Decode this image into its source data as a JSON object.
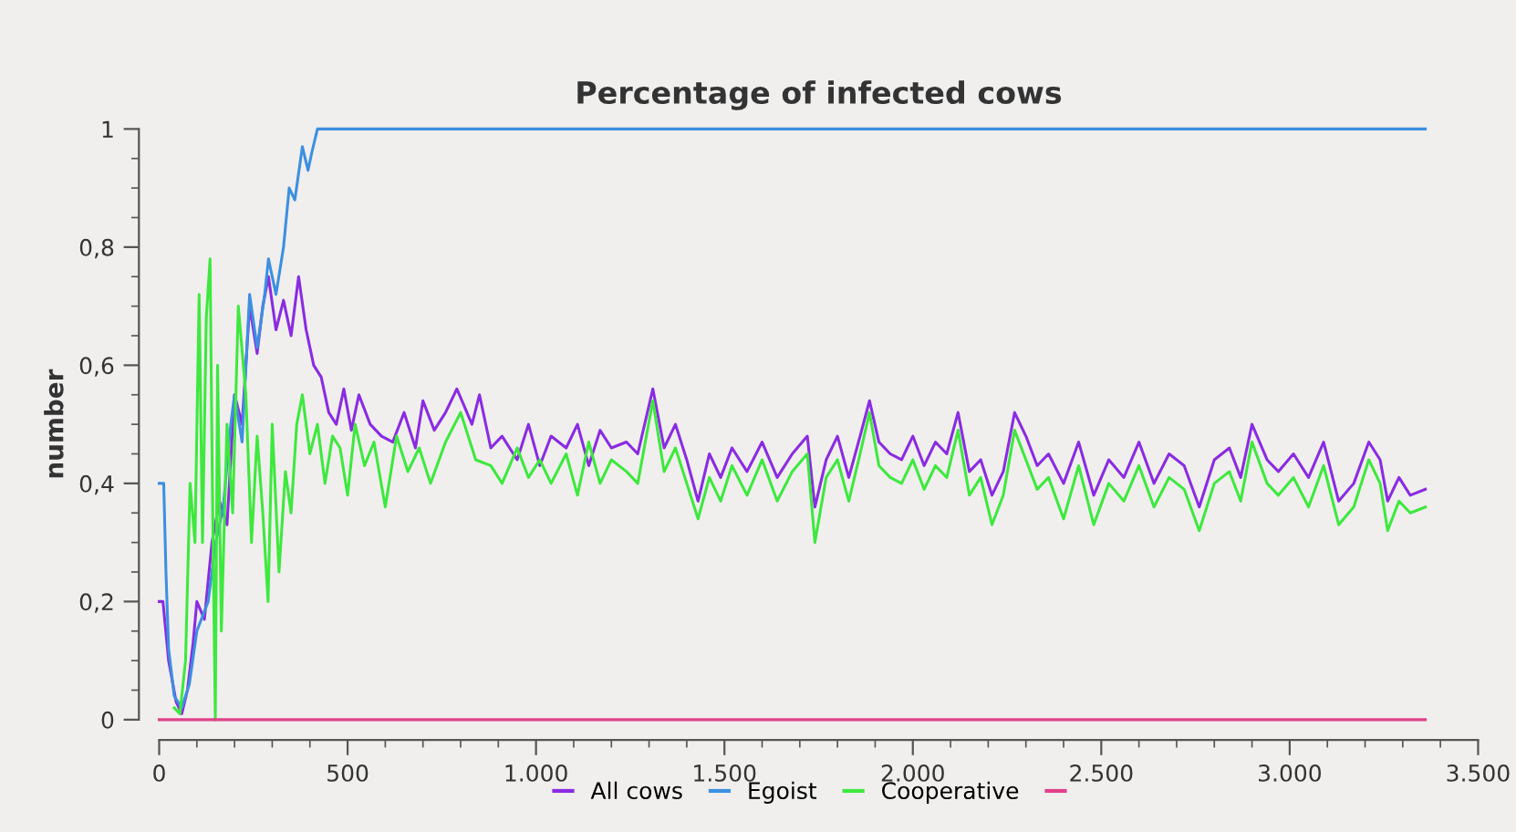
{
  "chart_data": {
    "type": "line",
    "title": "Percentage of infected cows",
    "ylabel": "number",
    "xlim": [
      0,
      3500
    ],
    "ylim": [
      0,
      1
    ],
    "xticks": [
      0,
      {
        "value": 100,
        "label": null
      },
      {
        "value": 200,
        "label": null
      },
      {
        "value": 300,
        "label": null
      },
      {
        "value": 400,
        "label": null
      },
      500,
      {
        "value": 600,
        "label": null
      },
      {
        "value": 700,
        "label": null
      },
      {
        "value": 800,
        "label": null
      },
      {
        "value": 900,
        "label": null
      },
      {
        "value": 1000,
        "label": "1.000"
      },
      {
        "value": 1100,
        "label": null
      },
      {
        "value": 1200,
        "label": null
      },
      {
        "value": 1300,
        "label": null
      },
      {
        "value": 1400,
        "label": null
      },
      {
        "value": 1500,
        "label": "1.500"
      },
      {
        "value": 1600,
        "label": null
      },
      {
        "value": 1700,
        "label": null
      },
      {
        "value": 1800,
        "label": null
      },
      {
        "value": 1900,
        "label": null
      },
      {
        "value": 2000,
        "label": "2.000"
      },
      {
        "value": 2100,
        "label": null
      },
      {
        "value": 2200,
        "label": null
      },
      {
        "value": 2300,
        "label": null
      },
      {
        "value": 2400,
        "label": null
      },
      {
        "value": 2500,
        "label": "2.500"
      },
      {
        "value": 2600,
        "label": null
      },
      {
        "value": 2700,
        "label": null
      },
      {
        "value": 2800,
        "label": null
      },
      {
        "value": 2900,
        "label": null
      },
      {
        "value": 3000,
        "label": "3.000"
      },
      {
        "value": 3100,
        "label": null
      },
      {
        "value": 3200,
        "label": null
      },
      {
        "value": 3300,
        "label": null
      },
      {
        "value": 3400,
        "label": null
      },
      {
        "value": 3500,
        "label": "3.500"
      }
    ],
    "yticks": [
      0,
      {
        "value": 0.05,
        "label": null
      },
      {
        "value": 0.1,
        "label": null
      },
      {
        "value": 0.15,
        "label": null
      },
      {
        "value": 0.2,
        "label": "0,2"
      },
      {
        "value": 0.25,
        "label": null
      },
      {
        "value": 0.3,
        "label": null
      },
      {
        "value": 0.35,
        "label": null
      },
      {
        "value": 0.4,
        "label": "0,4"
      },
      {
        "value": 0.45,
        "label": null
      },
      {
        "value": 0.5,
        "label": null
      },
      {
        "value": 0.55,
        "label": null
      },
      {
        "value": 0.6,
        "label": "0,6"
      },
      {
        "value": 0.65,
        "label": null
      },
      {
        "value": 0.7,
        "label": null
      },
      {
        "value": 0.75,
        "label": null
      },
      {
        "value": 0.8,
        "label": "0,8"
      },
      {
        "value": 0.85,
        "label": null
      },
      {
        "value": 0.9,
        "label": null
      },
      {
        "value": 0.95,
        "label": null
      },
      1
    ],
    "grid": false,
    "legend": "bottom",
    "marker": "none",
    "line_style": "solid",
    "series": [
      {
        "name": "All cows",
        "color": "#8a2be2",
        "x": [
          0,
          10,
          25,
          45,
          60,
          75,
          90,
          100,
          120,
          140,
          160,
          180,
          200,
          220,
          240,
          260,
          275,
          290,
          310,
          330,
          350,
          370,
          390,
          410,
          430,
          450,
          470,
          490,
          510,
          530,
          560,
          590,
          620,
          650,
          680,
          700,
          730,
          760,
          790,
          830,
          850,
          880,
          910,
          950,
          980,
          1010,
          1040,
          1080,
          1110,
          1140,
          1170,
          1200,
          1240,
          1270,
          1310,
          1340,
          1370,
          1400,
          1430,
          1460,
          1490,
          1520,
          1560,
          1600,
          1640,
          1680,
          1720,
          1740,
          1770,
          1800,
          1830,
          1860,
          1885,
          1910,
          1940,
          1970,
          2000,
          2030,
          2060,
          2090,
          2120,
          2150,
          2180,
          2210,
          2240,
          2270,
          2300,
          2330,
          2360,
          2400,
          2440,
          2480,
          2520,
          2560,
          2600,
          2640,
          2680,
          2720,
          2760,
          2800,
          2840,
          2870,
          2900,
          2940,
          2970,
          3010,
          3050,
          3090,
          3130,
          3170,
          3210,
          3240,
          3260,
          3290,
          3320,
          3360
        ],
        "values": [
          0.2,
          0.2,
          0.1,
          0.03,
          0.01,
          0.05,
          0.13,
          0.2,
          0.17,
          0.3,
          0.37,
          0.33,
          0.55,
          0.5,
          0.7,
          0.62,
          0.7,
          0.75,
          0.66,
          0.71,
          0.65,
          0.75,
          0.66,
          0.6,
          0.58,
          0.52,
          0.5,
          0.56,
          0.49,
          0.55,
          0.5,
          0.48,
          0.47,
          0.52,
          0.46,
          0.54,
          0.49,
          0.52,
          0.56,
          0.5,
          0.55,
          0.46,
          0.48,
          0.44,
          0.5,
          0.43,
          0.48,
          0.46,
          0.5,
          0.43,
          0.49,
          0.46,
          0.47,
          0.45,
          0.56,
          0.46,
          0.5,
          0.44,
          0.37,
          0.45,
          0.41,
          0.46,
          0.42,
          0.47,
          0.41,
          0.45,
          0.48,
          0.36,
          0.44,
          0.48,
          0.41,
          0.48,
          0.54,
          0.47,
          0.45,
          0.44,
          0.48,
          0.43,
          0.47,
          0.45,
          0.52,
          0.42,
          0.44,
          0.38,
          0.42,
          0.52,
          0.48,
          0.43,
          0.45,
          0.4,
          0.47,
          0.38,
          0.44,
          0.41,
          0.47,
          0.4,
          0.45,
          0.43,
          0.36,
          0.44,
          0.46,
          0.41,
          0.5,
          0.44,
          0.42,
          0.45,
          0.41,
          0.47,
          0.37,
          0.4,
          0.47,
          0.44,
          0.37,
          0.41,
          0.38,
          0.39
        ]
      },
      {
        "name": "Egoist",
        "color": "#3d8fe0",
        "x": [
          0,
          12,
          18,
          25,
          40,
          60,
          80,
          100,
          130,
          150,
          170,
          190,
          200,
          220,
          240,
          260,
          280,
          290,
          310,
          330,
          345,
          360,
          380,
          395,
          405,
          420,
          3360
        ],
        "values": [
          0.4,
          0.4,
          0.25,
          0.12,
          0.04,
          0.02,
          0.06,
          0.15,
          0.2,
          0.3,
          0.36,
          0.5,
          0.55,
          0.47,
          0.72,
          0.63,
          0.72,
          0.78,
          0.72,
          0.8,
          0.9,
          0.88,
          0.97,
          0.93,
          0.96,
          1,
          1
        ]
      },
      {
        "name": "Cooperative",
        "color": "#3ee83e",
        "x": [
          40,
          55,
          70,
          82,
          95,
          106,
          115,
          125,
          135,
          142,
          149,
          155,
          165,
          180,
          195,
          210,
          230,
          245,
          260,
          275,
          289,
          300,
          318,
          335,
          350,
          365,
          380,
          400,
          420,
          440,
          460,
          480,
          500,
          520,
          545,
          570,
          600,
          630,
          660,
          690,
          720,
          760,
          800,
          840,
          880,
          910,
          950,
          980,
          1010,
          1040,
          1080,
          1110,
          1140,
          1170,
          1200,
          1240,
          1270,
          1310,
          1340,
          1370,
          1400,
          1430,
          1460,
          1490,
          1520,
          1560,
          1600,
          1640,
          1680,
          1720,
          1740,
          1770,
          1800,
          1830,
          1860,
          1885,
          1910,
          1940,
          1970,
          2000,
          2030,
          2060,
          2090,
          2120,
          2150,
          2180,
          2210,
          2240,
          2270,
          2300,
          2330,
          2360,
          2400,
          2440,
          2480,
          2520,
          2560,
          2600,
          2640,
          2680,
          2720,
          2760,
          2800,
          2840,
          2870,
          2900,
          2940,
          2970,
          3010,
          3050,
          3090,
          3130,
          3170,
          3210,
          3240,
          3260,
          3290,
          3320,
          3360
        ],
        "values": [
          0.02,
          0.01,
          0.1,
          0.4,
          0.3,
          0.72,
          0.3,
          0.68,
          0.78,
          0.35,
          0.0,
          0.6,
          0.15,
          0.5,
          0.35,
          0.7,
          0.55,
          0.3,
          0.48,
          0.35,
          0.2,
          0.5,
          0.25,
          0.42,
          0.35,
          0.5,
          0.55,
          0.45,
          0.5,
          0.4,
          0.48,
          0.46,
          0.38,
          0.5,
          0.43,
          0.47,
          0.36,
          0.48,
          0.42,
          0.46,
          0.4,
          0.47,
          0.52,
          0.44,
          0.43,
          0.4,
          0.46,
          0.41,
          0.44,
          0.4,
          0.45,
          0.38,
          0.47,
          0.4,
          0.44,
          0.42,
          0.4,
          0.54,
          0.42,
          0.46,
          0.4,
          0.34,
          0.41,
          0.37,
          0.43,
          0.38,
          0.44,
          0.37,
          0.42,
          0.45,
          0.3,
          0.41,
          0.44,
          0.37,
          0.45,
          0.52,
          0.43,
          0.41,
          0.4,
          0.44,
          0.39,
          0.43,
          0.41,
          0.49,
          0.38,
          0.41,
          0.33,
          0.38,
          0.49,
          0.44,
          0.39,
          0.41,
          0.34,
          0.43,
          0.33,
          0.4,
          0.37,
          0.43,
          0.36,
          0.41,
          0.39,
          0.32,
          0.4,
          0.42,
          0.37,
          0.47,
          0.4,
          0.38,
          0.41,
          0.36,
          0.43,
          0.33,
          0.36,
          0.44,
          0.4,
          0.32,
          0.37,
          0.35,
          0.36
        ]
      },
      {
        "color": "#e0408a",
        "x": [
          0,
          3360
        ],
        "values": [
          0,
          0
        ]
      }
    ]
  }
}
